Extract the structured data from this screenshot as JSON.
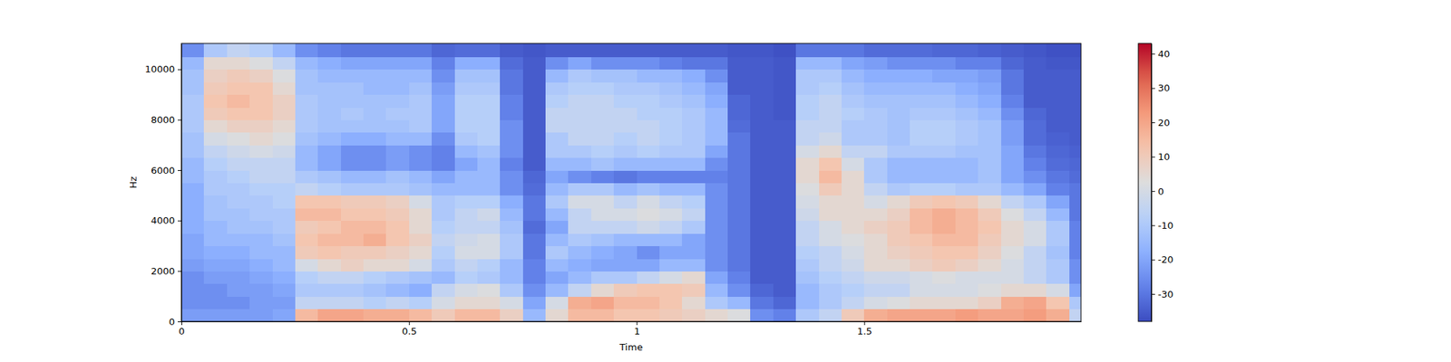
{
  "chart_data": {
    "type": "heatmap",
    "xlabel": "Time",
    "ylabel": "Hz",
    "xlim": [
      0,
      1.976
    ],
    "ylim": [
      0,
      11025
    ],
    "xticks": [
      0,
      0.5,
      1,
      1.5
    ],
    "yticks": [
      0,
      2000,
      4000,
      6000,
      8000,
      10000
    ],
    "xbins": [
      0,
      0.05,
      0.1,
      0.15,
      0.2,
      0.25,
      0.3,
      0.35,
      0.4,
      0.45,
      0.5,
      0.55,
      0.6,
      0.65,
      0.7,
      0.75,
      0.8,
      0.85,
      0.9,
      0.95,
      1.0,
      1.05,
      1.1,
      1.15,
      1.2,
      1.25,
      1.3,
      1.35,
      1.4,
      1.45,
      1.5,
      1.55,
      1.6,
      1.65,
      1.7,
      1.75,
      1.8,
      1.85,
      1.9,
      1.95,
      1.976
    ],
    "ybins": [
      0,
      500,
      1000,
      1500,
      2000,
      2500,
      3000,
      3500,
      4000,
      4500,
      5000,
      5500,
      6000,
      6500,
      7000,
      7500,
      8000,
      8500,
      9000,
      9500,
      10000,
      10500,
      11025
    ],
    "cells": [
      [
        -22,
        -25,
        -25,
        -25,
        -22,
        -20,
        -20,
        -18,
        -18,
        -18,
        -18,
        -15,
        -15,
        -12,
        -12,
        -10,
        -10,
        -10,
        -12,
        -12,
        -15,
        -25
      ],
      [
        -22,
        -25,
        -25,
        -22,
        -20,
        -18,
        -15,
        -15,
        -12,
        -12,
        -10,
        -10,
        -8,
        -5,
        0,
        5,
        10,
        12,
        10,
        8,
        5,
        -10
      ],
      [
        -22,
        -25,
        -22,
        -22,
        -20,
        -18,
        -15,
        -12,
        -12,
        -10,
        -10,
        -8,
        -5,
        -2,
        2,
        8,
        12,
        15,
        12,
        10,
        5,
        -5
      ],
      [
        -22,
        -22,
        -22,
        -20,
        -18,
        -15,
        -15,
        -12,
        -10,
        -10,
        -8,
        -5,
        -5,
        0,
        5,
        8,
        12,
        12,
        12,
        8,
        2,
        -8
      ],
      [
        -20,
        -22,
        -20,
        -18,
        -15,
        -15,
        -12,
        -10,
        -10,
        -8,
        -8,
        -5,
        -5,
        -2,
        2,
        5,
        8,
        8,
        5,
        2,
        -5,
        -15
      ],
      [
        15,
        -5,
        -10,
        -8,
        0,
        10,
        12,
        10,
        15,
        12,
        -5,
        -10,
        -15,
        -15,
        -12,
        -10,
        -10,
        -10,
        -12,
        -12,
        -15,
        -25
      ],
      [
        20,
        -5,
        -10,
        -5,
        5,
        12,
        15,
        12,
        15,
        12,
        -8,
        -12,
        -20,
        -20,
        -15,
        -12,
        -12,
        -12,
        -12,
        -15,
        -18,
        -28
      ],
      [
        20,
        -5,
        -10,
        -5,
        8,
        10,
        15,
        15,
        12,
        10,
        -10,
        -15,
        -25,
        -25,
        -18,
        -12,
        -10,
        -12,
        -12,
        -15,
        -20,
        -30
      ],
      [
        18,
        -8,
        -12,
        -8,
        5,
        10,
        18,
        15,
        12,
        10,
        -10,
        -15,
        -25,
        -25,
        -18,
        -12,
        -12,
        -12,
        -15,
        -15,
        -20,
        -30
      ],
      [
        18,
        -5,
        -15,
        -10,
        5,
        8,
        12,
        12,
        10,
        8,
        -10,
        -12,
        -22,
        -22,
        -15,
        -12,
        -10,
        -12,
        -15,
        -15,
        -20,
        -30
      ],
      [
        15,
        -8,
        -18,
        -12,
        0,
        5,
        8,
        5,
        5,
        0,
        -12,
        -15,
        -25,
        -25,
        -15,
        -10,
        -10,
        -10,
        -12,
        -15,
        -20,
        -30
      ],
      [
        10,
        0,
        -5,
        -15,
        -10,
        -8,
        -5,
        -8,
        -10,
        -10,
        -15,
        -20,
        -28,
        -28,
        -25,
        -20,
        -20,
        -20,
        -22,
        -25,
        -28,
        -33
      ],
      [
        15,
        5,
        0,
        -8,
        -5,
        0,
        -2,
        -5,
        -5,
        -8,
        -15,
        -15,
        -20,
        -15,
        -10,
        -8,
        -8,
        -8,
        -10,
        -12,
        -18,
        -32
      ],
      [
        15,
        5,
        2,
        -10,
        -8,
        0,
        0,
        -5,
        -2,
        -8,
        -15,
        -15,
        -15,
        -12,
        -8,
        -8,
        -8,
        -8,
        -10,
        -12,
        -18,
        -32
      ],
      [
        8,
        0,
        -10,
        -15,
        -15,
        -10,
        -10,
        -12,
        -15,
        -18,
        -25,
        -25,
        -28,
        -25,
        -25,
        -25,
        -28,
        -28,
        -30,
        -30,
        -32,
        -35
      ],
      [
        -15,
        -20,
        -25,
        -28,
        -28,
        -30,
        -30,
        -32,
        -30,
        -30,
        -32,
        -33,
        -35,
        -35,
        -35,
        -35,
        -35,
        -35,
        -35,
        -35,
        -35,
        -36
      ],
      [
        5,
        0,
        -15,
        -20,
        -15,
        -10,
        -15,
        -20,
        -15,
        -10,
        -15,
        -20,
        -15,
        -10,
        -10,
        -5,
        -5,
        -8,
        -10,
        -15,
        -25,
        -35
      ],
      [
        15,
        18,
        -5,
        -15,
        -18,
        -15,
        -10,
        -5,
        -5,
        0,
        -10,
        -25,
        -15,
        -10,
        -5,
        -5,
        -5,
        -5,
        -8,
        -10,
        -20,
        -35
      ],
      [
        15,
        20,
        5,
        -10,
        -20,
        -18,
        -12,
        -5,
        0,
        0,
        -10,
        -28,
        -12,
        -8,
        -5,
        -5,
        -5,
        -5,
        -8,
        -12,
        -25,
        -35
      ],
      [
        12,
        15,
        10,
        -10,
        -20,
        -20,
        -15,
        -5,
        0,
        -5,
        -15,
        -30,
        -15,
        -10,
        -8,
        -5,
        -5,
        -8,
        -10,
        -12,
        -25,
        -35
      ],
      [
        12,
        15,
        12,
        -5,
        -20,
        -25,
        -15,
        -2,
        2,
        0,
        -12,
        -28,
        -15,
        -8,
        -5,
        -5,
        -8,
        -8,
        -10,
        -15,
        -25,
        -35
      ],
      [
        10,
        12,
        12,
        0,
        -15,
        -20,
        -15,
        -5,
        0,
        -5,
        -15,
        -28,
        -15,
        -10,
        -8,
        -8,
        -8,
        -10,
        -12,
        -15,
        -28,
        -35
      ],
      [
        8,
        5,
        10,
        5,
        -15,
        -20,
        -20,
        -10,
        -5,
        -8,
        -15,
        -28,
        -15,
        -10,
        -10,
        -10,
        -10,
        -12,
        -15,
        -18,
        -30,
        -35
      ],
      [
        5,
        -10,
        -15,
        -20,
        -25,
        -25,
        -25,
        -25,
        -25,
        -25,
        -25,
        -28,
        -25,
        -20,
        -15,
        -15,
        -15,
        -18,
        -20,
        -25,
        -30,
        -35
      ],
      [
        2,
        -15,
        -25,
        -28,
        -30,
        -30,
        -30,
        -30,
        -30,
        -30,
        -30,
        -30,
        -30,
        -30,
        -30,
        -32,
        -33,
        -33,
        -35,
        -35,
        -35,
        -36
      ],
      [
        -25,
        -30,
        -33,
        -35,
        -35,
        -35,
        -35,
        -35,
        -35,
        -35,
        -35,
        -35,
        -35,
        -35,
        -35,
        -35,
        -35,
        -35,
        -35,
        -35,
        -35,
        -36
      ],
      [
        -28,
        -33,
        -35,
        -35,
        -35,
        -35,
        -35,
        -35,
        -35,
        -35,
        -35,
        -35,
        -35,
        -35,
        -35,
        -35,
        -36,
        -36,
        -36,
        -36,
        -36,
        -37
      ],
      [
        -10,
        -15,
        -15,
        -12,
        -10,
        -8,
        -5,
        -5,
        -2,
        0,
        2,
        5,
        5,
        0,
        -5,
        -5,
        -8,
        -8,
        -10,
        -10,
        -15,
        -30
      ],
      [
        -5,
        -10,
        -10,
        -8,
        -5,
        -5,
        0,
        0,
        5,
        5,
        10,
        15,
        12,
        5,
        -2,
        -5,
        -5,
        -5,
        -8,
        -10,
        -15,
        -30
      ],
      [
        10,
        -5,
        -8,
        -5,
        -2,
        0,
        2,
        5,
        5,
        5,
        5,
        5,
        0,
        -5,
        -10,
        -10,
        -8,
        -10,
        -12,
        -15,
        -20,
        -30
      ],
      [
        18,
        0,
        -5,
        -2,
        5,
        5,
        5,
        8,
        5,
        0,
        -5,
        -10,
        -10,
        -5,
        -10,
        -10,
        -10,
        -12,
        -15,
        -18,
        -22,
        -32
      ],
      [
        20,
        2,
        -5,
        -2,
        5,
        8,
        10,
        10,
        8,
        5,
        -10,
        -15,
        -15,
        -10,
        -12,
        -12,
        -12,
        -12,
        -15,
        -18,
        -25,
        -32
      ],
      [
        20,
        5,
        0,
        0,
        8,
        10,
        12,
        15,
        15,
        10,
        -8,
        -15,
        -15,
        -10,
        -8,
        -8,
        -10,
        -12,
        -15,
        -18,
        -25,
        -32
      ],
      [
        20,
        5,
        0,
        2,
        10,
        12,
        15,
        18,
        18,
        12,
        -8,
        -15,
        -15,
        -10,
        -8,
        -8,
        -10,
        -12,
        -15,
        -20,
        -25,
        -33
      ],
      [
        22,
        5,
        0,
        0,
        8,
        12,
        15,
        15,
        15,
        10,
        -10,
        -15,
        -15,
        -12,
        -10,
        -10,
        -12,
        -15,
        -18,
        -20,
        -28,
        -33
      ],
      [
        20,
        8,
        2,
        0,
        5,
        8,
        10,
        12,
        10,
        5,
        -10,
        -12,
        -12,
        -12,
        -12,
        -12,
        -15,
        -18,
        -20,
        -22,
        -28,
        -34
      ],
      [
        20,
        18,
        5,
        0,
        0,
        2,
        5,
        5,
        2,
        -5,
        -15,
        -20,
        -20,
        -20,
        -22,
        -22,
        -25,
        -28,
        -30,
        -30,
        -33,
        -35
      ],
      [
        22,
        20,
        5,
        -5,
        -5,
        -5,
        0,
        0,
        -5,
        -10,
        -20,
        -25,
        -28,
        -30,
        -32,
        -32,
        -33,
        -35,
        -35,
        -35,
        -35,
        -36
      ],
      [
        18,
        12,
        0,
        -10,
        -10,
        -12,
        -10,
        -10,
        -15,
        -20,
        -28,
        -30,
        -32,
        -33,
        -34,
        -35,
        -35,
        -35,
        -35,
        -35,
        -36,
        -37
      ],
      [
        -5,
        -10,
        -20,
        -25,
        -25,
        -28,
        -28,
        -28,
        -30,
        -30,
        -30,
        -32,
        -33,
        -34,
        -35,
        -35,
        -35,
        -35,
        -35,
        -35,
        -36,
        -37
      ]
    ],
    "colorbar": {
      "range": [
        -38,
        43
      ],
      "ticks": [
        -30,
        -20,
        -10,
        0,
        10,
        20,
        30,
        40
      ]
    }
  }
}
